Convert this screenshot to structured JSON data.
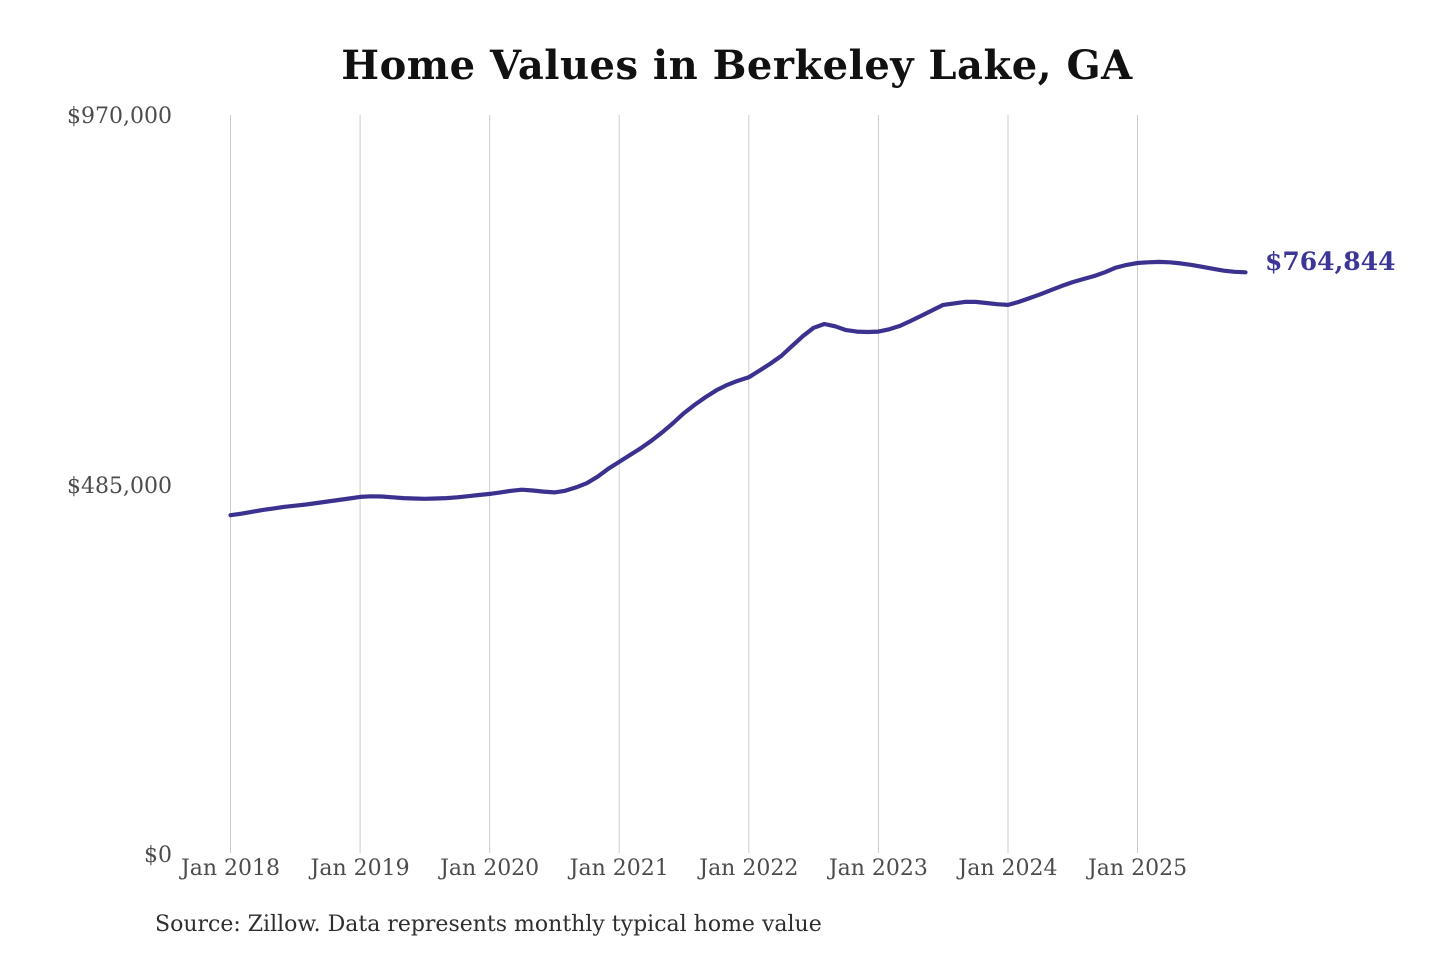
{
  "title": "Home Values in Berkeley Lake, GA",
  "source": "Source: Zillow. Data represents monthly typical home value",
  "colors": {
    "background": "#ffffff",
    "line": "#3b3290",
    "accent_text": "#3c3796",
    "grid": "#cccccc",
    "title_text": "#111111",
    "axis_text": "#4c4c4c",
    "source_text": "#2e2e2e"
  },
  "chart_data": {
    "type": "line",
    "title": "Home Values in Berkeley Lake, GA",
    "xlabel": "",
    "ylabel": "",
    "ylim": [
      0,
      970000
    ],
    "grid": "vertical-only",
    "legend": "none",
    "cadence": "monthly",
    "x_start_label": "Jan 2018",
    "end_label": "$764,844",
    "end_value": 764844,
    "y_ticks": [
      {
        "label": "$0",
        "value": 0
      },
      {
        "label": "$485,000",
        "value": 485000
      },
      {
        "label": "$970,000",
        "value": 970000
      }
    ],
    "x_ticks": [
      {
        "label": "Jan 2018",
        "month_index": 0
      },
      {
        "label": "Jan 2019",
        "month_index": 12
      },
      {
        "label": "Jan 2020",
        "month_index": 24
      },
      {
        "label": "Jan 2021",
        "month_index": 36
      },
      {
        "label": "Jan 2022",
        "month_index": 48
      },
      {
        "label": "Jan 2023",
        "month_index": 60
      },
      {
        "label": "Jan 2024",
        "month_index": 72
      },
      {
        "label": "Jan 2025",
        "month_index": 84
      }
    ],
    "series": [
      {
        "name": "monthly-typical-home-value",
        "values": [
          446000,
          448000,
          450500,
          453000,
          455000,
          457000,
          458500,
          460000,
          462000,
          464000,
          466000,
          468000,
          470000,
          470800,
          470500,
          469500,
          468500,
          468000,
          467500,
          468000,
          468500,
          469500,
          471000,
          472500,
          474000,
          476000,
          478000,
          479500,
          478500,
          477000,
          476000,
          478000,
          482500,
          488000,
          496500,
          507000,
          516000,
          525000,
          534000,
          544000,
          555000,
          567000,
          580000,
          591000,
          601000,
          610000,
          617000,
          622500,
          627000,
          636000,
          645000,
          655000,
          668000,
          681000,
          692000,
          697000,
          694000,
          689000,
          687000,
          686500,
          687000,
          690000,
          694500,
          701000,
          708000,
          715000,
          722000,
          724000,
          726000,
          726000,
          724500,
          723000,
          722000,
          726000,
          731000,
          736000,
          741500,
          747000,
          752000,
          756000,
          760000,
          765000,
          771000,
          774500,
          777000,
          778000,
          778500,
          778000,
          776500,
          774500,
          772000,
          769500,
          767000,
          765500,
          764844
        ]
      }
    ]
  }
}
